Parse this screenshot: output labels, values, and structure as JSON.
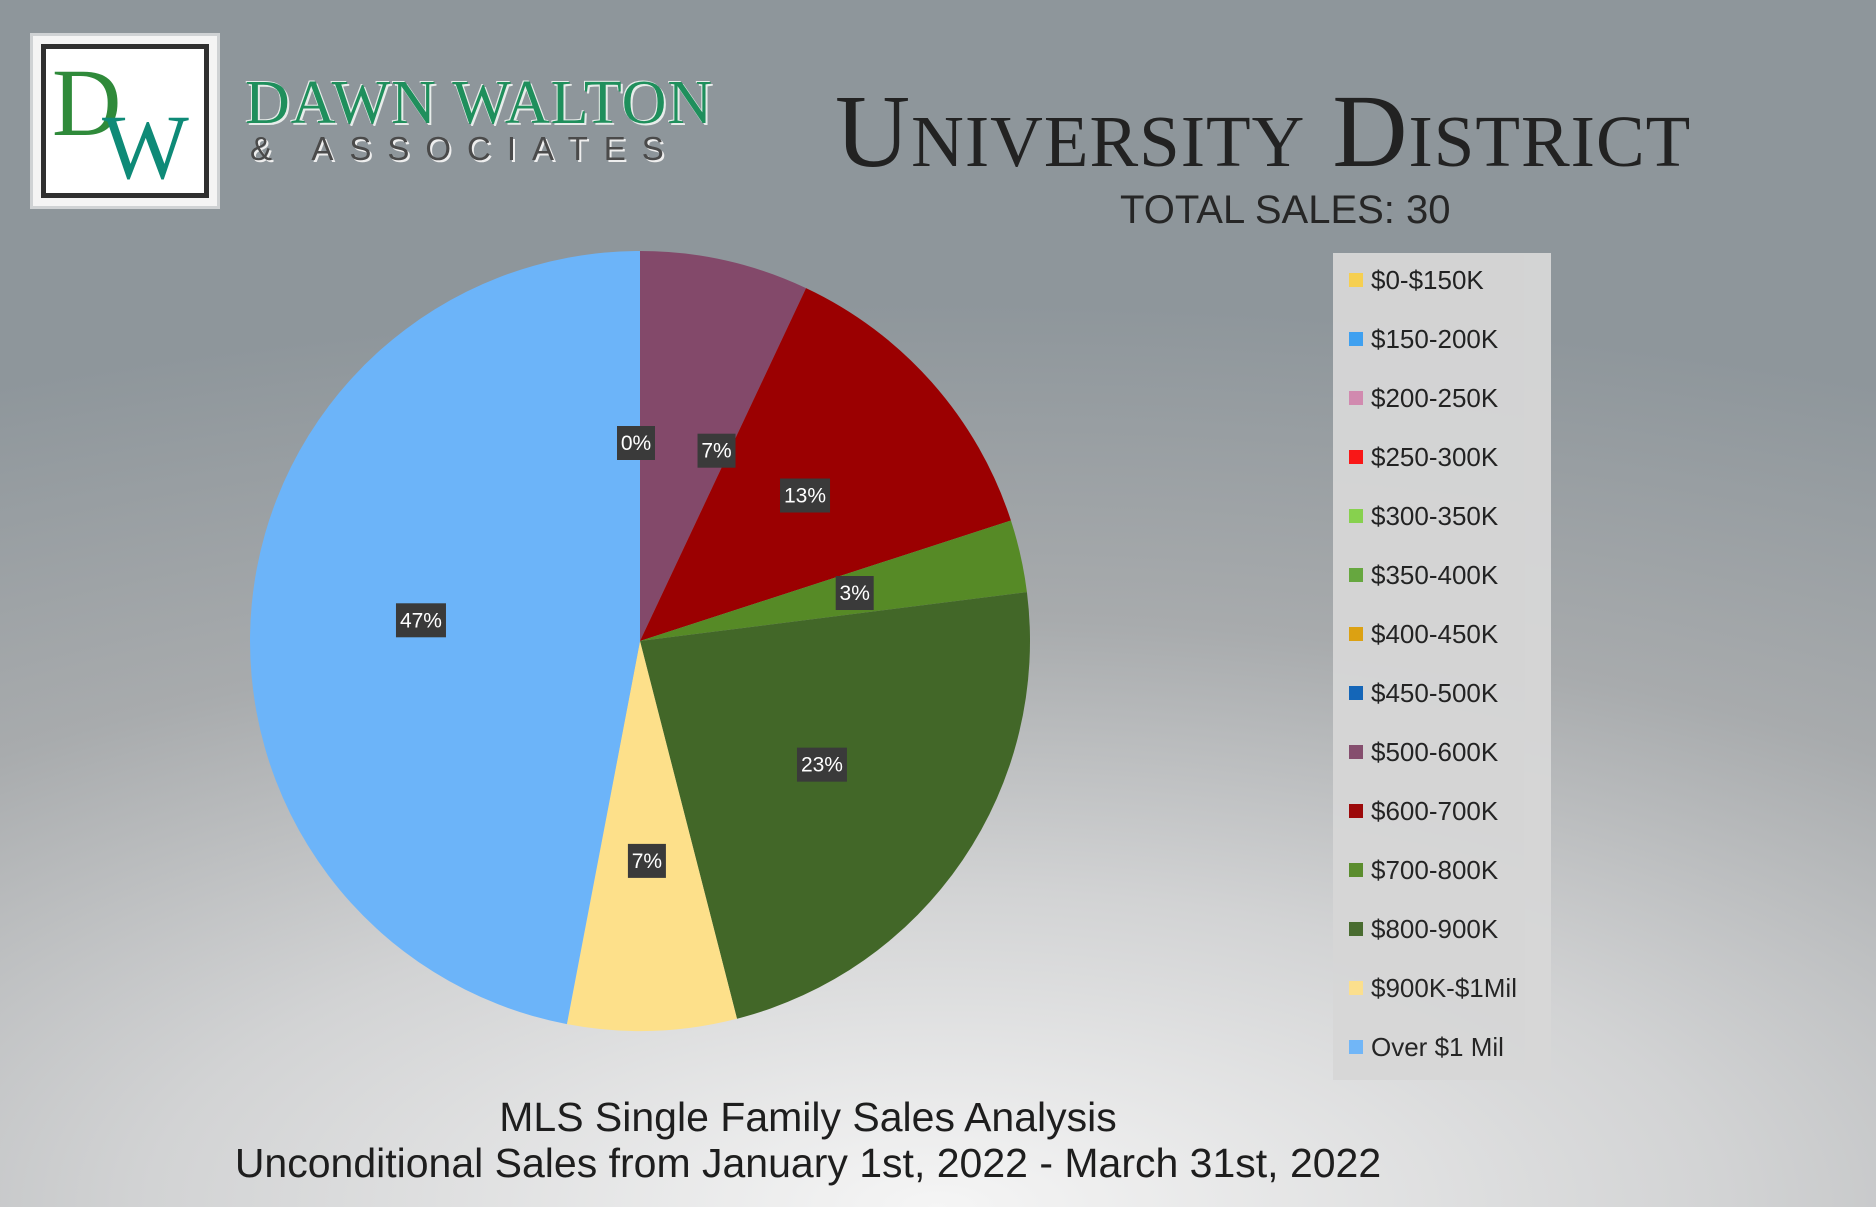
{
  "logo": {
    "monogram_d": "D",
    "monogram_w": "W",
    "brand_name": "DAWN WALTON",
    "brand_sub": "& ASSOCIATES"
  },
  "colors": {
    "brand_green": "#1f8f5c"
  },
  "chart_data": {
    "type": "pie",
    "title": "University District",
    "subtitle": "TOTAL SALES: 30",
    "legend_placement": "right",
    "categories": [
      "$0-$150K",
      "$150-200K",
      "$200-250K",
      "$250-300K",
      "$300-350K",
      "$350-400K",
      "$400-450K",
      "$450-500K",
      "$500-600K",
      "$600-700K",
      "$700-800K",
      "$800-900K",
      "$900K-$1Mil",
      "Over $1 Mil"
    ],
    "values": [
      0,
      0,
      0,
      0,
      0,
      0,
      0,
      0,
      7,
      13,
      3,
      23,
      7,
      47
    ],
    "labels": [
      "0%",
      "",
      "",
      "",
      "",
      "",
      "",
      "",
      "7%",
      "13%",
      "3%",
      "23%",
      "7%",
      "47%"
    ],
    "colors": [
      "#fcd34d",
      "#3ba1f5",
      "#d58ab0",
      "#ff1010",
      "#86d44a",
      "#63a83a",
      "#dfa10a",
      "#0c62b9",
      "#83496a",
      "#9b0001",
      "#568a26",
      "#426728",
      "#fde08a",
      "#6cb4f9"
    ]
  },
  "footer": {
    "line1": "MLS Single Family Sales Analysis",
    "line2": "Unconditional Sales from January 1st, 2022 - March 31st, 2022"
  }
}
